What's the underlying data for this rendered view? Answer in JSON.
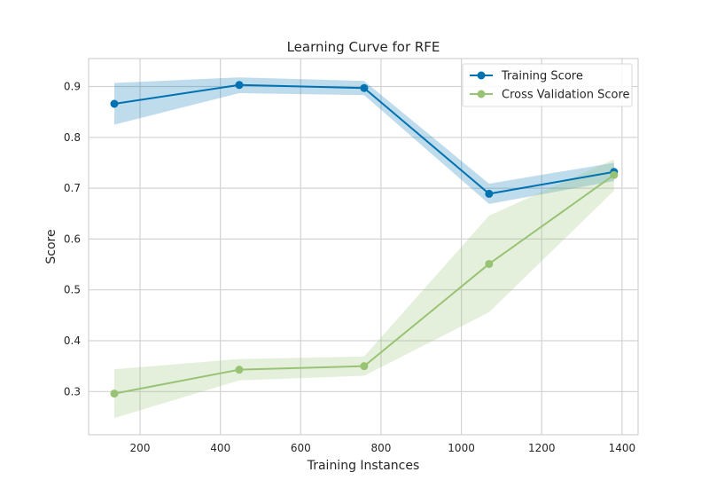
{
  "chart_data": {
    "type": "line",
    "title": "Learning Curve for RFE",
    "xlabel": "Training Instances",
    "ylabel": "Score",
    "xlim": [
      72,
      1440
    ],
    "ylim": [
      0.215,
      0.955
    ],
    "xticks": [
      200,
      400,
      600,
      800,
      1000,
      1200,
      1400
    ],
    "yticks": [
      0.3,
      0.4,
      0.5,
      0.6,
      0.7,
      0.8,
      0.9
    ],
    "grid": true,
    "legend_position": "top-right",
    "x": [
      136,
      447,
      758,
      1069,
      1380
    ],
    "series": [
      {
        "name": "Training Score",
        "color": "#0072b2",
        "band_color": "#0072b2",
        "values": [
          0.866,
          0.903,
          0.897,
          0.689,
          0.732
        ],
        "upper": [
          0.907,
          0.918,
          0.911,
          0.709,
          0.75
        ],
        "lower": [
          0.825,
          0.887,
          0.883,
          0.669,
          0.714
        ]
      },
      {
        "name": "Cross Validation Score",
        "color": "#99c374",
        "band_color": "#99c374",
        "values": [
          0.296,
          0.343,
          0.35,
          0.551,
          0.726
        ],
        "upper": [
          0.344,
          0.364,
          0.369,
          0.646,
          0.757
        ],
        "lower": [
          0.248,
          0.322,
          0.331,
          0.456,
          0.695
        ]
      }
    ]
  }
}
